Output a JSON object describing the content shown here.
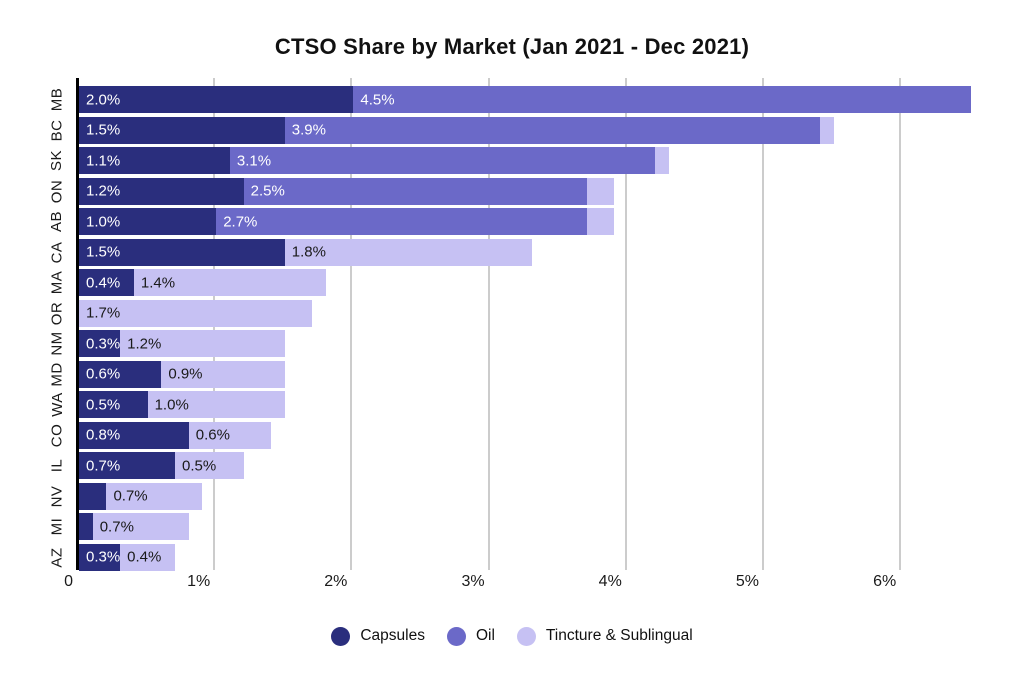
{
  "chart_data": {
    "type": "bar",
    "orientation": "horizontal",
    "stacked": true,
    "title": "CTSO Share by Market (Jan 2021 - Dec 2021)",
    "categories": [
      "MB",
      "BC",
      "SK",
      "ON",
      "AB",
      "CA",
      "MA",
      "OR",
      "NM",
      "MD",
      "WA",
      "CO",
      "IL",
      "NV",
      "MI",
      "AZ"
    ],
    "series": [
      {
        "name": "Capsules",
        "color": "#2a2e7d",
        "label_color": "#ffffff",
        "values": [
          2.0,
          1.5,
          1.1,
          1.2,
          1.0,
          1.5,
          0.4,
          0,
          0.3,
          0.6,
          0.5,
          0.8,
          0.7,
          0.2,
          0.1,
          0.3
        ],
        "labels": [
          "2.0%",
          "1.5%",
          "1.1%",
          "1.2%",
          "1.0%",
          "1.5%",
          "0.4%",
          "",
          "0.3%",
          "0.6%",
          "0.5%",
          "0.8%",
          "0.7%",
          "",
          "",
          "0.3%"
        ]
      },
      {
        "name": "Oil",
        "color": "#6b69c8",
        "label_color": "#ffffff",
        "values": [
          4.5,
          3.9,
          3.1,
          2.5,
          2.7,
          0,
          0,
          0,
          0,
          0,
          0,
          0,
          0,
          0,
          0,
          0
        ],
        "labels": [
          "4.5%",
          "3.9%",
          "3.1%",
          "2.5%",
          "2.7%",
          "",
          "",
          "",
          "",
          "",
          "",
          "",
          "",
          "",
          "",
          ""
        ]
      },
      {
        "name": "Tincture & Sublingual",
        "color": "#c6c1f3",
        "label_color": "#1a1a1a",
        "values": [
          0,
          0.1,
          0.1,
          0.2,
          0.2,
          1.8,
          1.4,
          1.7,
          1.2,
          0.9,
          1.0,
          0.6,
          0.5,
          0.7,
          0.7,
          0.4
        ],
        "labels": [
          "",
          "",
          "",
          "",
          "",
          "1.8%",
          "1.4%",
          "1.7%",
          "1.2%",
          "0.9%",
          "1.0%",
          "0.6%",
          "0.5%",
          "0.7%",
          "0.7%",
          "0.4%"
        ]
      }
    ],
    "x_ticks": [
      "0",
      "1%",
      "2%",
      "3%",
      "4%",
      "5%",
      "6%"
    ],
    "xlim": [
      0,
      6.9
    ],
    "grid": true,
    "grid_color": "#cccccc",
    "axis_color": "#000000",
    "tick_label_color": "#1a1a1a",
    "legend_position": "bottom"
  }
}
